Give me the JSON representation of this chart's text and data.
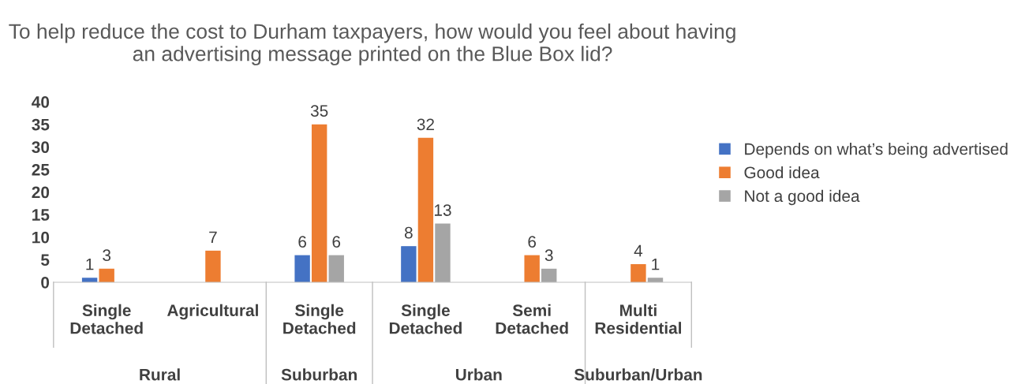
{
  "chart_data": {
    "type": "bar",
    "title": "To help reduce the cost to Durham taxpayers, how would you feel about having an advertising message printed on the Blue Box lid?",
    "categories": [
      "Single\nDetached",
      "Agricultural",
      "Single\nDetached",
      "Single\nDetached",
      "Semi\nDetached",
      "Multi\nResidential"
    ],
    "series": [
      {
        "name": "Depends on what’s being advertised",
        "color": "#4472c4",
        "values": [
          1,
          null,
          6,
          8,
          null,
          null
        ]
      },
      {
        "name": "Good idea",
        "color": "#ed7d31",
        "values": [
          3,
          7,
          35,
          32,
          6,
          4
        ]
      },
      {
        "name": "Not a good idea",
        "color": "#a5a5a5",
        "values": [
          null,
          null,
          6,
          13,
          3,
          1
        ]
      }
    ],
    "annotations": [
      "Rural",
      "Suburban",
      "Urban",
      "Suburban/Urban"
    ],
    "ylim": [
      0,
      40
    ],
    "yticks": [
      0,
      5,
      10,
      15,
      20,
      25,
      30,
      35,
      40
    ],
    "data_labels": true,
    "grid": false,
    "legend": "right"
  }
}
